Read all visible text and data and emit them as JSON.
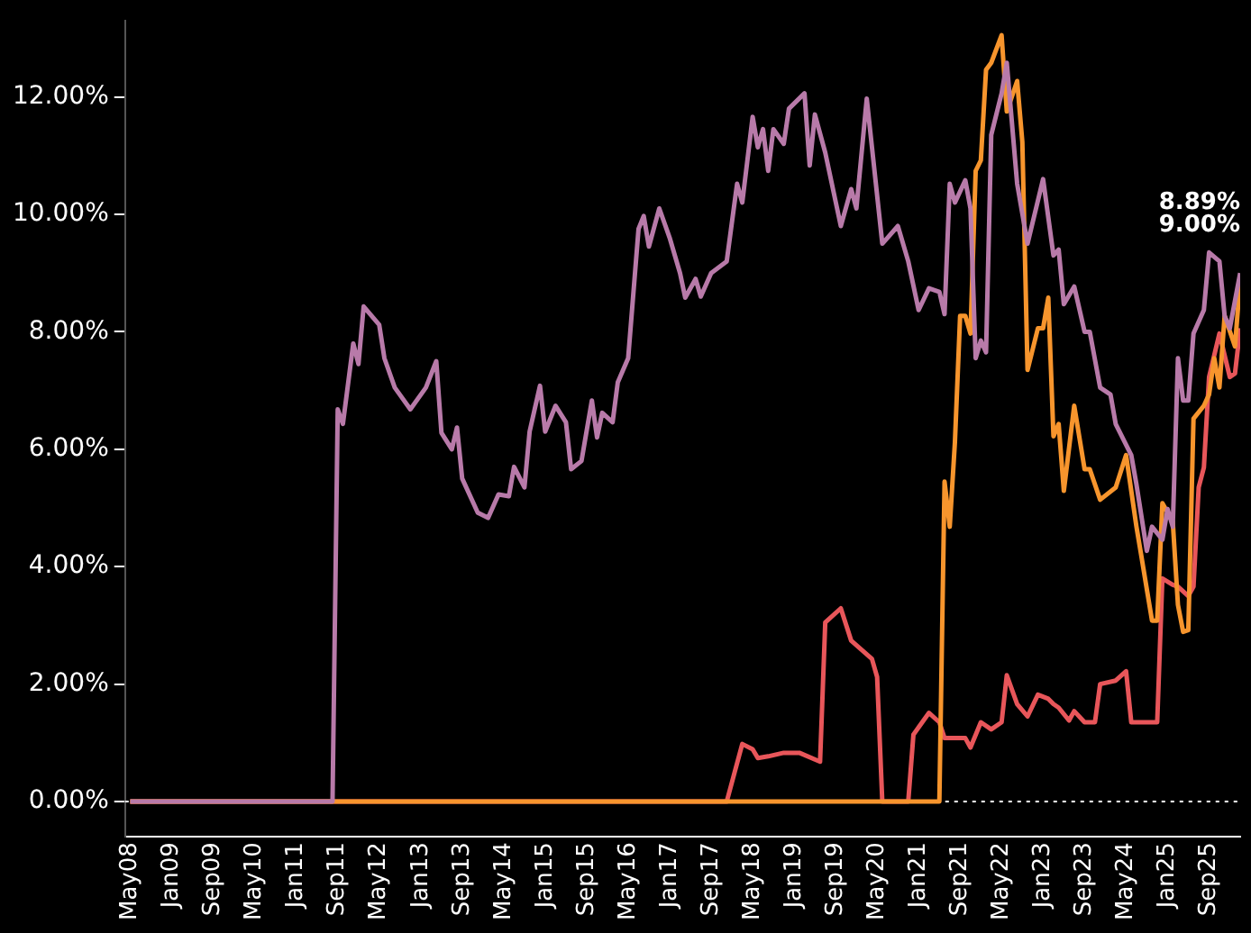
{
  "chart_data": {
    "type": "line",
    "series": [
      {
        "color": "#b87aa9",
        "x": [
          "2008-05",
          "2011-08",
          "2011-09",
          "2011-10",
          "2011-12",
          "2012-01",
          "2012-02",
          "2012-05",
          "2012-06",
          "2012-08",
          "2012-11",
          "2013-02",
          "2013-04",
          "2013-05",
          "2013-07",
          "2013-08",
          "2013-09",
          "2013-12",
          "2014-02",
          "2014-04",
          "2014-06",
          "2014-07",
          "2014-09",
          "2014-10",
          "2014-12",
          "2015-01",
          "2015-03",
          "2015-05",
          "2015-06",
          "2015-08",
          "2015-10",
          "2015-11",
          "2015-12",
          "2016-02",
          "2016-03",
          "2016-05",
          "2016-07",
          "2016-08",
          "2016-09",
          "2016-11",
          "2017-01",
          "2017-03",
          "2017-04",
          "2017-06",
          "2017-07",
          "2017-09",
          "2017-12",
          "2018-02",
          "2018-03",
          "2018-05",
          "2018-06",
          "2018-07",
          "2018-08",
          "2018-09",
          "2018-11",
          "2018-12",
          "2019-03",
          "2019-04",
          "2019-05",
          "2019-07",
          "2019-10",
          "2019-12",
          "2020-01",
          "2020-03",
          "2020-06",
          "2020-09",
          "2020-11",
          "2021-01",
          "2021-03",
          "2021-05",
          "2021-06",
          "2021-07",
          "2021-08",
          "2021-10",
          "2021-11",
          "2021-12",
          "2022-01",
          "2022-02",
          "2022-03",
          "2022-05",
          "2022-06",
          "2022-08",
          "2022-10",
          "2023-01",
          "2023-03",
          "2023-04",
          "2023-05",
          "2023-07",
          "2023-09",
          "2023-10",
          "2023-12",
          "2024-02",
          "2024-03",
          "2024-06",
          "2024-07",
          "2024-09",
          "2024-10",
          "2024-12",
          "2025-01",
          "2025-02",
          "2025-03",
          "2025-04",
          "2025-05",
          "2025-06",
          "2025-08",
          "2025-09",
          "2025-11",
          "2025-12",
          "2026-01",
          "2026-03"
        ],
        "values": [
          0,
          0,
          6.68,
          6.43,
          7.8,
          7.45,
          8.43,
          8.12,
          7.55,
          7.05,
          6.68,
          7.05,
          7.5,
          6.28,
          6.0,
          6.37,
          5.5,
          4.92,
          4.83,
          5.23,
          5.2,
          5.7,
          5.35,
          6.3,
          7.08,
          6.3,
          6.74,
          6.46,
          5.66,
          5.8,
          6.83,
          6.2,
          6.62,
          6.46,
          7.14,
          7.55,
          9.75,
          9.97,
          9.45,
          10.1,
          9.6,
          9.0,
          8.58,
          8.9,
          8.6,
          9.0,
          9.2,
          10.52,
          10.2,
          11.66,
          11.14,
          11.45,
          10.74,
          11.45,
          11.2,
          11.8,
          12.06,
          10.83,
          11.7,
          11.05,
          9.8,
          10.43,
          10.1,
          11.97,
          9.5,
          9.8,
          9.2,
          8.37,
          8.74,
          8.68,
          8.3,
          10.52,
          10.2,
          10.58,
          10.1,
          7.55,
          7.85,
          7.65,
          11.35,
          12.06,
          12.58,
          10.52,
          9.5,
          10.6,
          9.3,
          9.4,
          8.47,
          8.77,
          8.0,
          8.0,
          7.05,
          6.93,
          6.43,
          5.9,
          5.4,
          4.27,
          4.68,
          4.46,
          4.98,
          4.68,
          7.55,
          6.83,
          6.83,
          7.97,
          8.37,
          9.35,
          9.2,
          8.27,
          8.06,
          9.0
        ]
      },
      {
        "color": "#f7952d",
        "x": [
          "2008-05",
          "2021-05",
          "2021-06",
          "2021-07",
          "2021-08",
          "2021-09",
          "2021-10",
          "2021-11",
          "2021-12",
          "2022-01",
          "2022-02",
          "2022-03",
          "2022-05",
          "2022-06",
          "2022-08",
          "2022-09",
          "2022-10",
          "2022-12",
          "2023-01",
          "2023-02",
          "2023-03",
          "2023-04",
          "2023-05",
          "2023-07",
          "2023-09",
          "2023-10",
          "2023-12",
          "2024-03",
          "2024-05",
          "2024-07",
          "2024-08",
          "2024-10",
          "2024-11",
          "2024-12",
          "2025-02",
          "2025-03",
          "2025-04",
          "2025-05",
          "2025-06",
          "2025-08",
          "2025-09",
          "2025-10",
          "2025-11",
          "2025-12",
          "2026-02",
          "2026-03"
        ],
        "values": [
          0,
          0,
          5.45,
          4.68,
          6.12,
          8.27,
          8.27,
          7.97,
          10.74,
          10.92,
          12.46,
          12.58,
          13.05,
          11.75,
          12.27,
          11.23,
          7.35,
          8.06,
          8.06,
          8.58,
          6.22,
          6.43,
          5.29,
          6.74,
          5.66,
          5.66,
          5.14,
          5.35,
          5.9,
          4.68,
          4.15,
          3.08,
          3.08,
          5.08,
          4.77,
          3.35,
          2.89,
          2.92,
          6.52,
          6.74,
          6.93,
          7.55,
          7.05,
          8.27,
          7.75,
          8.89
        ]
      },
      {
        "color": "#e8565a",
        "x": [
          "2008-05",
          "2017-12",
          "2018-03",
          "2018-05",
          "2018-06",
          "2018-08",
          "2018-11",
          "2019-02",
          "2019-06",
          "2019-07",
          "2019-10",
          "2019-12",
          "2020-04",
          "2020-05",
          "2020-06",
          "2020-11",
          "2020-12",
          "2021-03",
          "2021-05",
          "2021-06",
          "2021-10",
          "2021-11",
          "2022-01",
          "2022-03",
          "2022-05",
          "2022-06",
          "2022-08",
          "2022-10",
          "2022-12",
          "2023-02",
          "2023-03",
          "2023-04",
          "2023-06",
          "2023-07",
          "2023-09",
          "2023-11",
          "2023-12",
          "2024-03",
          "2024-05",
          "2024-06",
          "2024-11",
          "2024-12",
          "2025-02",
          "2025-03",
          "2025-05",
          "2025-06",
          "2025-07",
          "2025-08",
          "2025-09",
          "2025-11",
          "2026-01",
          "2026-02",
          "2026-03"
        ],
        "values": [
          0,
          0,
          0.98,
          0.89,
          0.74,
          0.77,
          0.83,
          0.83,
          0.68,
          3.05,
          3.29,
          2.74,
          2.43,
          2.12,
          0,
          0,
          1.14,
          1.51,
          1.35,
          1.08,
          1.08,
          0.92,
          1.35,
          1.23,
          1.35,
          2.15,
          1.66,
          1.45,
          1.82,
          1.75,
          1.66,
          1.6,
          1.38,
          1.54,
          1.35,
          1.35,
          2.0,
          2.06,
          2.22,
          1.35,
          1.35,
          3.8,
          3.69,
          3.66,
          3.5,
          3.66,
          5.35,
          5.69,
          7.23,
          7.97,
          7.23,
          7.29,
          8.06
        ]
      }
    ],
    "xlim": [
      "2008-04",
      "2026-03"
    ],
    "xticks": [
      {
        "value": "2008-05",
        "label": "May08"
      },
      {
        "value": "2009-01",
        "label": "Jan09"
      },
      {
        "value": "2009-09",
        "label": "Sep09"
      },
      {
        "value": "2010-05",
        "label": "May10"
      },
      {
        "value": "2011-01",
        "label": "Jan11"
      },
      {
        "value": "2011-09",
        "label": "Sep11"
      },
      {
        "value": "2012-05",
        "label": "May12"
      },
      {
        "value": "2013-01",
        "label": "Jan13"
      },
      {
        "value": "2013-09",
        "label": "Sep13"
      },
      {
        "value": "2014-05",
        "label": "May14"
      },
      {
        "value": "2015-01",
        "label": "Jan15"
      },
      {
        "value": "2015-09",
        "label": "Sep15"
      },
      {
        "value": "2016-05",
        "label": "May16"
      },
      {
        "value": "2017-01",
        "label": "Jan17"
      },
      {
        "value": "2017-09",
        "label": "Sep17"
      },
      {
        "value": "2018-05",
        "label": "May18"
      },
      {
        "value": "2019-01",
        "label": "Jan19"
      },
      {
        "value": "2019-09",
        "label": "Sep19"
      },
      {
        "value": "2020-05",
        "label": "May20"
      },
      {
        "value": "2021-01",
        "label": "Jan21"
      },
      {
        "value": "2021-09",
        "label": "Sep21"
      },
      {
        "value": "2022-05",
        "label": "May22"
      },
      {
        "value": "2023-01",
        "label": "Jan23"
      },
      {
        "value": "2023-09",
        "label": "Sep23"
      },
      {
        "value": "2024-05",
        "label": "May24"
      },
      {
        "value": "2025-01",
        "label": "Jan25"
      },
      {
        "value": "2025-09",
        "label": "Sep25"
      }
    ],
    "ylim": [
      -0.6,
      13.3
    ],
    "yticks": [
      {
        "value": 0,
        "label": "0.00%"
      },
      {
        "value": 2,
        "label": "2.00%"
      },
      {
        "value": 4,
        "label": "4.00%"
      },
      {
        "value": 6,
        "label": "6.00%"
      },
      {
        "value": 8,
        "label": "8.00%"
      },
      {
        "value": 10,
        "label": "10.00%"
      },
      {
        "value": 12,
        "label": "12.00%"
      }
    ],
    "ref_lines": [
      {
        "axis": "y",
        "value": 0,
        "color": "#ffffff",
        "line_style": "dotted"
      }
    ],
    "annotations": [
      {
        "text": "9.00%",
        "x": "2026-03",
        "y": 9.0
      },
      {
        "text": "8.89%",
        "x": "2026-03",
        "y": 8.89
      }
    ],
    "grid": false,
    "legend": false,
    "marker": "none",
    "line_style": "solid"
  }
}
